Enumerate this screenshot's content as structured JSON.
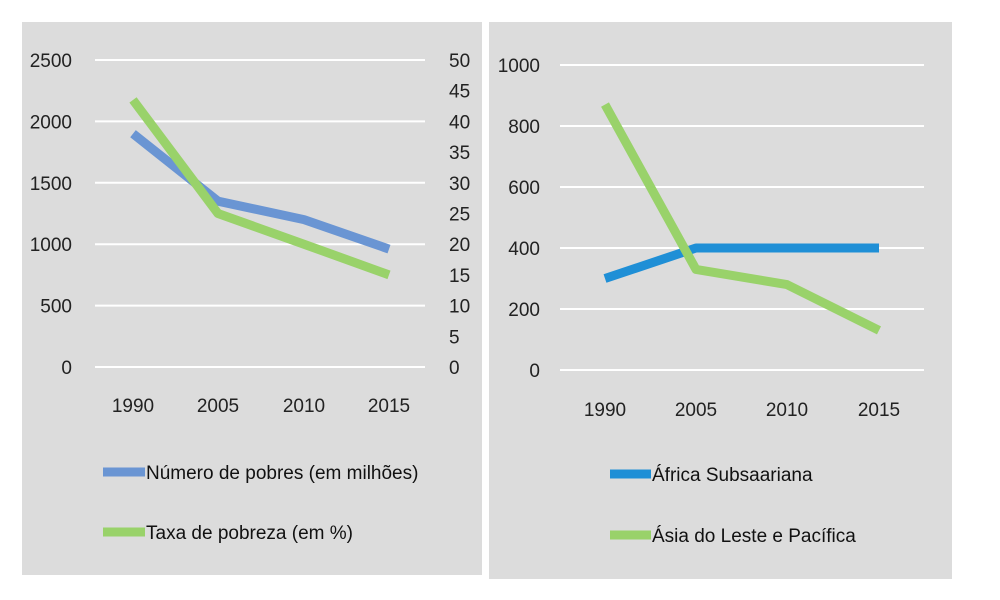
{
  "chart_data": [
    {
      "type": "line",
      "x": [
        "1990",
        "2005",
        "2010",
        "2015"
      ],
      "y_left_ticks": [
        "0",
        "500",
        "1000",
        "1500",
        "2000",
        "2500"
      ],
      "y_right_ticks": [
        "0",
        "5",
        "10",
        "15",
        "20",
        "25",
        "30",
        "35",
        "40",
        "45",
        "50"
      ],
      "ylim_left": [
        0,
        2500
      ],
      "ylim_right": [
        0,
        50
      ],
      "grid": true,
      "legend_position": "bottom",
      "series": [
        {
          "name": "Número de pobres (em milhões)",
          "axis": "left",
          "color": "#6a95d3",
          "values": [
            1900,
            1350,
            1200,
            960
          ]
        },
        {
          "name": "Taxa de pobreza (em %)",
          "axis": "right",
          "color": "#99d26a",
          "values": [
            43.5,
            25,
            20,
            15
          ]
        }
      ]
    },
    {
      "type": "line",
      "x": [
        "1990",
        "2005",
        "2010",
        "2015"
      ],
      "y_ticks": [
        "0",
        "200",
        "400",
        "600",
        "800",
        "1000"
      ],
      "ylim": [
        0,
        1000
      ],
      "grid": true,
      "legend_position": "bottom",
      "series": [
        {
          "name": "África Subsaariana",
          "color": "#1f8fd6",
          "values": [
            300,
            400,
            400,
            400
          ]
        },
        {
          "name": "Ásia do Leste e Pacífica",
          "color": "#99d26a",
          "values": [
            870,
            330,
            280,
            130
          ]
        }
      ]
    }
  ]
}
